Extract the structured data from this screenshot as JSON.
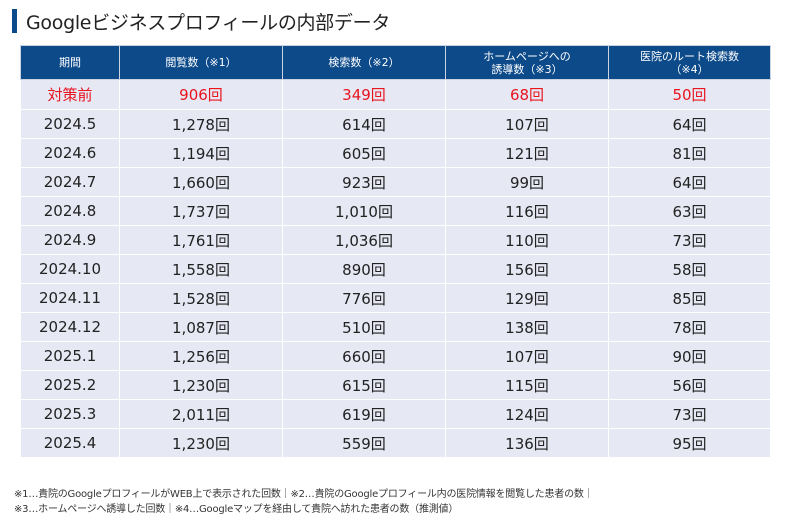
{
  "page": {
    "title": "Googleビジネスプロフィールの内部データ",
    "accent_color": "#0b4a8b",
    "highlight_color": "#e8141e"
  },
  "table": {
    "headers": [
      {
        "line1": "期間",
        "line2": ""
      },
      {
        "line1": "閲覧数（※1）",
        "line2": ""
      },
      {
        "line1": "検索数（※2）",
        "line2": ""
      },
      {
        "line1": "ホームページへの",
        "line2": "誘導数（※3）"
      },
      {
        "line1": "医院のルート検索数",
        "line2": "（※4）"
      }
    ],
    "rows": [
      [
        "対策前",
        "906回",
        "349回",
        "68回",
        "50回"
      ],
      [
        "2024.5",
        "1,278回",
        "614回",
        "107回",
        "64回"
      ],
      [
        "2024.6",
        "1,194回",
        "605回",
        "121回",
        "81回"
      ],
      [
        "2024.7",
        "1,660回",
        "923回",
        "99回",
        "64回"
      ],
      [
        "2024.8",
        "1,737回",
        "1,010回",
        "116回",
        "63回"
      ],
      [
        "2024.9",
        "1,761回",
        "1,036回",
        "110回",
        "73回"
      ],
      [
        "2024.10",
        "1,558回",
        "890回",
        "156回",
        "58回"
      ],
      [
        "2024.11",
        "1,528回",
        "776回",
        "129回",
        "85回"
      ],
      [
        "2024.12",
        "1,087回",
        "510回",
        "138回",
        "78回"
      ],
      [
        "2025.1",
        "1,256回",
        "660回",
        "107回",
        "90回"
      ],
      [
        "2025.2",
        "1,230回",
        "615回",
        "115回",
        "56回"
      ],
      [
        "2025.3",
        "2,011回",
        "619回",
        "124回",
        "73回"
      ],
      [
        "2025.4",
        "1,230回",
        "559回",
        "136回",
        "95回"
      ]
    ]
  },
  "notes": {
    "line1": "※1…貴院のGoogleプロフィールがWEB上で表示された回数｜※2…貴院のGoogleプロフィール内の医院情報を閲覧した患者の数｜",
    "line2": "※3…ホームページへ誘導した回数｜※4…Googleマップを経由して貴院へ訪れた患者の数（推測値）"
  }
}
